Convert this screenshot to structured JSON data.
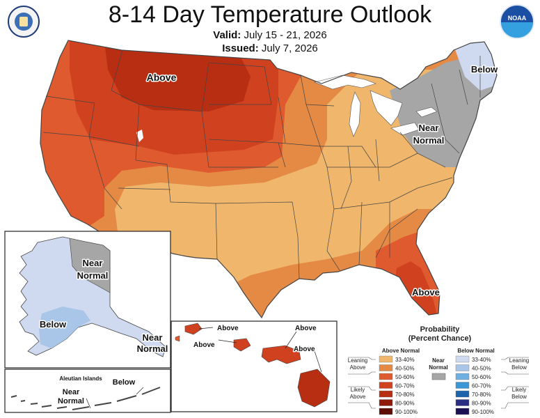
{
  "header": {
    "title": "8-14 Day Temperature Outlook",
    "valid_label": "Valid:",
    "valid_value": "July 15 - 21, 2026",
    "issued_label": "Issued:",
    "issued_value": "July 7, 2026"
  },
  "logos": {
    "left": "department-of-commerce-seal-icon",
    "right_text": "NOAA"
  },
  "conus": {
    "above_label": "Above",
    "below_label": "Below",
    "near_line1": "Near",
    "near_line2": "Normal",
    "florida_above": "Above"
  },
  "alaska": {
    "near_line1": "Near",
    "near_line2": "Normal",
    "below_label": "Below",
    "se_near_line1": "Near",
    "se_near_line2": "Normal"
  },
  "aleutian": {
    "title": "Aleutian Islands",
    "near_line1": "Near",
    "near_line2": "Normal",
    "below_label": "Below"
  },
  "hawaii": {
    "labels": [
      "Above",
      "Above",
      "Above",
      "Above"
    ]
  },
  "legend": {
    "title_line1": "Probability",
    "title_line2": "(Percent Chance)",
    "above_header": "Above Normal",
    "below_header": "Below Normal",
    "near_line1": "Near",
    "near_line2": "Normal",
    "leaning_above_1": "Leaning",
    "leaning_above_2": "Above",
    "likely_above_1": "Likely",
    "likely_above_2": "Above",
    "leaning_below_1": "Leaning",
    "leaning_below_2": "Below",
    "likely_below_1": "Likely",
    "likely_below_2": "Below",
    "above_bins": [
      {
        "label": "33-40%",
        "color": "#f0b76c"
      },
      {
        "label": "40-50%",
        "color": "#e58a45"
      },
      {
        "label": "50-60%",
        "color": "#df5a2e"
      },
      {
        "label": "60-70%",
        "color": "#d0421f"
      },
      {
        "label": "70-80%",
        "color": "#b82e13"
      },
      {
        "label": "80-90%",
        "color": "#8e1a09"
      },
      {
        "label": "90-100%",
        "color": "#5e0d04"
      }
    ],
    "below_bins": [
      {
        "label": "33-40%",
        "color": "#cfd9ef"
      },
      {
        "label": "40-50%",
        "color": "#a9c5e8"
      },
      {
        "label": "50-60%",
        "color": "#6fb0e2"
      },
      {
        "label": "60-70%",
        "color": "#3b96d6"
      },
      {
        "label": "70-80%",
        "color": "#1d64ad"
      },
      {
        "label": "80-90%",
        "color": "#2a2e82"
      },
      {
        "label": "90-100%",
        "color": "#1c1054"
      }
    ],
    "near_color": "#a6a6a6"
  }
}
